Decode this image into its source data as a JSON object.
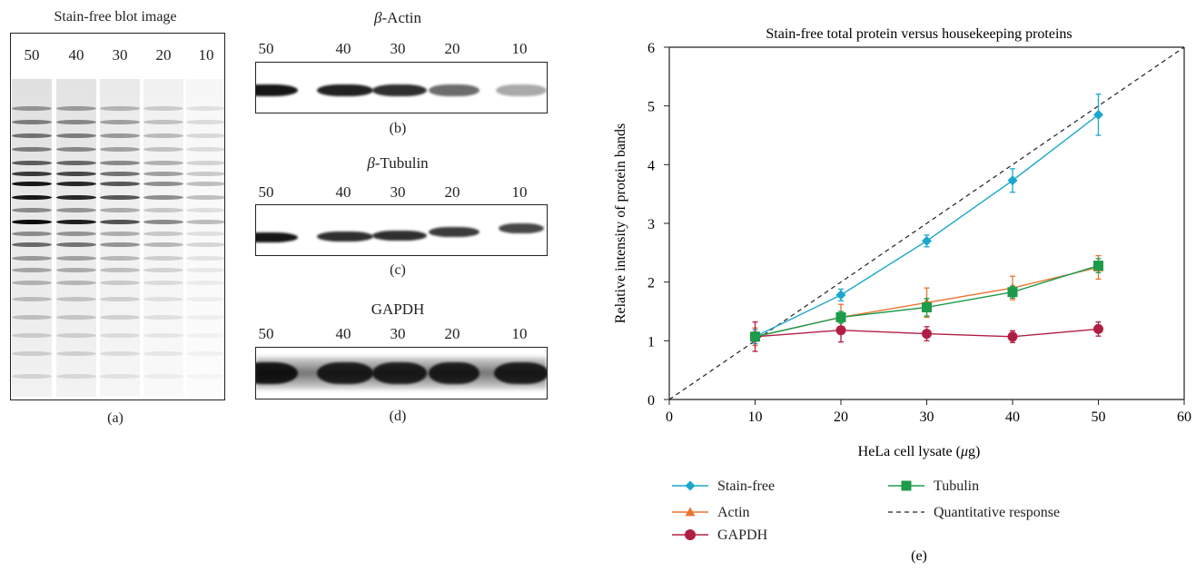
{
  "panels": {
    "a": {
      "title": "Stain-free blot image",
      "caption": "(a)",
      "lanes": [
        "50",
        "40",
        "30",
        "20",
        "10"
      ]
    },
    "b": {
      "title": "β-Actin",
      "title_greek": "β",
      "title_rest": "-Actin",
      "caption": "(b)",
      "lanes": [
        "50",
        "40",
        "30",
        "20",
        "10"
      ]
    },
    "c": {
      "title": "β-Tubulin",
      "title_greek": "β",
      "title_rest": "-Tubulin",
      "caption": "(c)",
      "lanes": [
        "50",
        "40",
        "30",
        "20",
        "10"
      ]
    },
    "d": {
      "title": "GAPDH",
      "caption": "(d)",
      "lanes": [
        "50",
        "40",
        "30",
        "20",
        "10"
      ]
    },
    "e": {
      "caption": "(e)"
    }
  },
  "chart_data": {
    "type": "line",
    "title": "Stain-free total protein versus housekeeping proteins",
    "xlabel_prefix": "HeLa cell lysate (",
    "xlabel_unit": "μ",
    "xlabel_suffix": "g)",
    "xlabel": "HeLa cell lysate (μg)",
    "ylabel": "Relative intensity of protein bands",
    "xlim": [
      0,
      60
    ],
    "ylim": [
      0,
      6
    ],
    "xticks": [
      0,
      10,
      20,
      30,
      40,
      50,
      60
    ],
    "yticks": [
      0,
      1,
      2,
      3,
      4,
      5,
      6
    ],
    "grid": false,
    "legend_position": "bottom",
    "x": [
      10,
      20,
      30,
      40,
      50
    ],
    "series": [
      {
        "name": "Stain-free",
        "color": "#1aa7cc",
        "marker": "diamond",
        "values": [
          1.07,
          1.78,
          2.7,
          3.73,
          4.85
        ],
        "errors": [
          0.12,
          0.1,
          0.1,
          0.2,
          0.35
        ]
      },
      {
        "name": "Actin",
        "color": "#e8732f",
        "marker": "triangle",
        "values": [
          1.07,
          1.4,
          1.65,
          1.9,
          2.25
        ],
        "errors": [
          0.15,
          0.22,
          0.25,
          0.2,
          0.2
        ]
      },
      {
        "name": "GAPDH",
        "color": "#b11e45",
        "marker": "circle",
        "values": [
          1.07,
          1.18,
          1.12,
          1.07,
          1.2
        ],
        "errors": [
          0.25,
          0.2,
          0.12,
          0.1,
          0.12
        ]
      },
      {
        "name": "Tubulin",
        "color": "#1e9a4b",
        "marker": "square",
        "values": [
          1.07,
          1.4,
          1.57,
          1.83,
          2.28
        ],
        "errors": [
          0.08,
          0.1,
          0.15,
          0.1,
          0.12
        ]
      }
    ],
    "reference_line": {
      "name": "Quantitative response",
      "color": "#222222",
      "style": "dashed",
      "x": [
        0,
        60
      ],
      "y": [
        0,
        6
      ]
    }
  }
}
